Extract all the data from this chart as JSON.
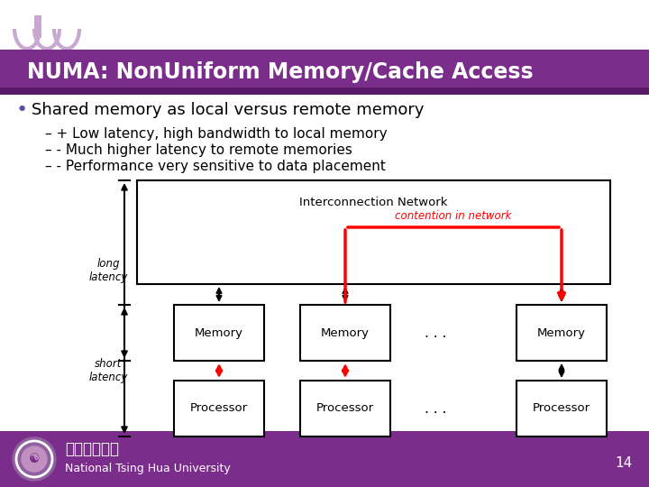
{
  "title": "NUMA: NonUniform Memory/Cache Access",
  "title_bar_color": "#7B2D8B",
  "background_color": "#FFFFFF",
  "footer_bar_color": "#7B2D8B",
  "footer_text": "National Tsing Hua University",
  "footer_chinese": "國立清華大學",
  "page_number": "14",
  "bullet_color": "#5B4EA0",
  "bullet_text": "Shared memory as local versus remote memory",
  "sub_bullets": [
    "– + Low latency, high bandwidth to local memory",
    "– - Much higher latency to remote memories",
    "– - Performance very sensitive to data placement"
  ],
  "diagram": {
    "inet_label": "Interconnection Network",
    "contention_label": "contention in network",
    "mem_labels": [
      "Memory",
      "Memory",
      "Memory"
    ],
    "proc_labels": [
      "Processor",
      "Processor",
      "Processor"
    ],
    "dots": ". . ."
  },
  "purple_accent": "#6B3A9B"
}
